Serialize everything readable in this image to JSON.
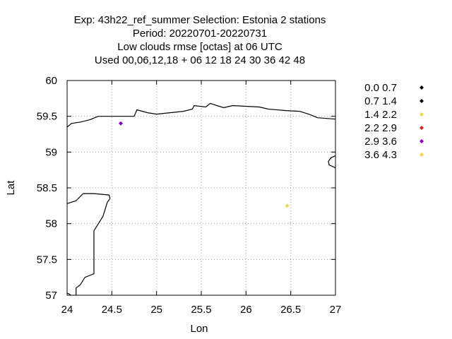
{
  "chart_data": {
    "type": "scatter",
    "title_lines": [
      "Exp: 43h22_ref_summer   Selection: Estonia      2 stations",
      "Period: 20220701-20220731",
      "Low clouds rmse [octas] at  06 UTC",
      "Used  00,06,12,18  + 06 12 18 24 30 36 42 48"
    ],
    "xlabel": "Lon",
    "ylabel": "Lat",
    "xlim": [
      24,
      27
    ],
    "ylim": [
      57,
      60
    ],
    "xticks": [
      {
        "value": 24,
        "label": "24"
      },
      {
        "value": 24.5,
        "label": "24.5"
      },
      {
        "value": 25,
        "label": "25"
      },
      {
        "value": 25.5,
        "label": "25.5"
      },
      {
        "value": 26,
        "label": "26"
      },
      {
        "value": 26.5,
        "label": "26.5"
      },
      {
        "value": 27,
        "label": "27"
      }
    ],
    "yticks": [
      {
        "value": 57,
        "label": "57"
      },
      {
        "value": 57.5,
        "label": "57.5"
      },
      {
        "value": 58,
        "label": "58"
      },
      {
        "value": 58.5,
        "label": "58.5"
      },
      {
        "value": 59,
        "label": "59"
      },
      {
        "value": 59.5,
        "label": "59.5"
      },
      {
        "value": 60,
        "label": "60"
      }
    ],
    "grid": true,
    "legend_position": "right",
    "legend": [
      {
        "label": "0.0 0.7",
        "color": "#000000"
      },
      {
        "label": "0.7 1.4",
        "color": "#000000"
      },
      {
        "label": "1.4 2.2",
        "color": "#f0d848"
      },
      {
        "label": "2.2 2.9",
        "color": "#d02020"
      },
      {
        "label": "2.9 3.6",
        "color": "#8000c0"
      },
      {
        "label": "3.6 4.3",
        "color": "#f0d848"
      }
    ],
    "points": [
      {
        "lon": 24.6,
        "lat": 59.4,
        "color": "#8000c0"
      },
      {
        "lon": 26.46,
        "lat": 58.25,
        "color": "#f0d848"
      }
    ],
    "coastlines": [
      [
        [
          24.0,
          59.35
        ],
        [
          24.05,
          59.4
        ],
        [
          24.15,
          59.42
        ],
        [
          24.25,
          59.45
        ],
        [
          24.35,
          59.5
        ],
        [
          24.55,
          59.5
        ],
        [
          24.75,
          59.5
        ],
        [
          24.78,
          59.59
        ],
        [
          24.9,
          59.55
        ],
        [
          25.0,
          59.53
        ],
        [
          25.15,
          59.55
        ],
        [
          25.3,
          59.57
        ],
        [
          25.4,
          59.6
        ],
        [
          25.42,
          59.65
        ],
        [
          25.55,
          59.63
        ],
        [
          25.6,
          59.68
        ],
        [
          25.75,
          59.62
        ],
        [
          25.85,
          59.65
        ],
        [
          26.0,
          59.64
        ],
        [
          26.15,
          59.63
        ],
        [
          26.25,
          59.6
        ],
        [
          26.45,
          59.58
        ],
        [
          26.6,
          59.57
        ],
        [
          26.7,
          59.53
        ],
        [
          26.8,
          59.48
        ],
        [
          26.9,
          59.47
        ],
        [
          27.0,
          59.46
        ]
      ],
      [
        [
          24.0,
          58.28
        ],
        [
          24.1,
          58.32
        ],
        [
          24.18,
          58.42
        ],
        [
          24.3,
          58.42
        ],
        [
          24.47,
          58.4
        ],
        [
          24.48,
          58.35
        ],
        [
          24.45,
          58.3
        ],
        [
          24.4,
          58.1
        ],
        [
          24.35,
          58.0
        ],
        [
          24.3,
          57.9
        ],
        [
          24.3,
          57.7
        ],
        [
          24.3,
          57.5
        ],
        [
          24.3,
          57.3
        ],
        [
          24.2,
          57.25
        ],
        [
          24.15,
          57.15
        ],
        [
          24.1,
          57.1
        ],
        [
          24.1,
          57.0
        ]
      ],
      [
        [
          24.0,
          57.03
        ],
        [
          24.02,
          57.02
        ],
        [
          24.04,
          57.0
        ]
      ],
      [
        [
          27.0,
          58.78
        ],
        [
          26.93,
          58.82
        ],
        [
          26.92,
          58.87
        ],
        [
          26.95,
          58.92
        ],
        [
          27.0,
          58.95
        ]
      ]
    ]
  }
}
